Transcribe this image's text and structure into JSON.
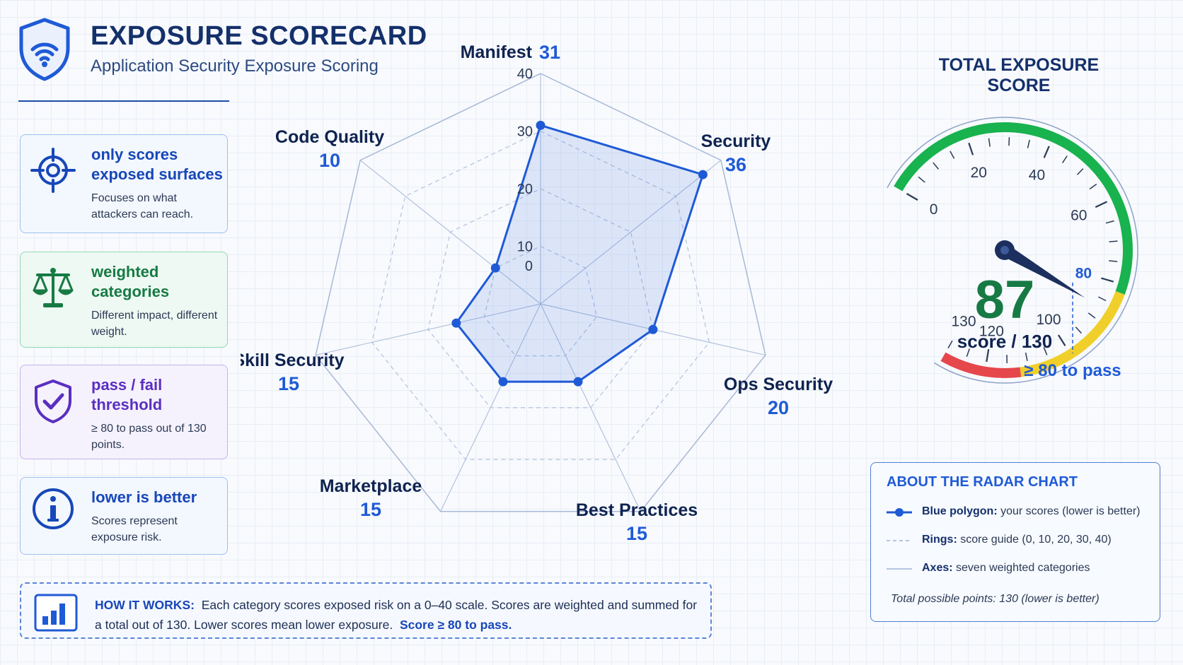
{
  "header": {
    "title": "EXPOSURE SCORECARD",
    "subtitle": "Application Security Exposure Scoring"
  },
  "cards": [
    {
      "title": "only scores exposed surfaces",
      "desc": "Focuses on what attackers can reach.",
      "icon": "crosshair-icon",
      "color": "#1747b8"
    },
    {
      "title": "weighted categories",
      "desc": "Different impact, different weight.",
      "icon": "scale-icon",
      "color": "#177a44"
    },
    {
      "title": "pass / fail threshold",
      "desc": "≥ 80 to pass out of 130 points.",
      "icon": "shield-check-icon",
      "color": "#5a2fc0"
    },
    {
      "title": "lower is better",
      "desc": "Scores represent exposure risk.",
      "icon": "info-icon",
      "color": "#1747b8"
    }
  ],
  "how_it_works": {
    "label": "HOW IT WORKS:",
    "text": "Each category scores exposed risk on a 0–40 scale. Scores are weighted and summed for a total out of 130. Lower scores mean lower exposure.",
    "pass": "Score ≥ 80 to pass."
  },
  "chart_data": [
    {
      "type": "radar",
      "categories": [
        "Manifest",
        "Security",
        "Ops Security",
        "Best Practices",
        "Marketplace",
        "Skill Security",
        "Code Quality"
      ],
      "values": [
        31,
        36,
        20,
        15,
        15,
        15,
        10
      ],
      "rings": [
        0,
        10,
        20,
        30,
        40
      ],
      "range": [
        0,
        40
      ],
      "color": "#1f5ad6"
    },
    {
      "type": "gauge",
      "title": "TOTAL EXPOSURE SCORE",
      "value": 87,
      "value_label": "87",
      "unit_label": "score / 130",
      "range": [
        0,
        130
      ],
      "ticks": [
        0,
        20,
        40,
        60,
        80,
        100,
        120,
        130
      ],
      "threshold": 80,
      "threshold_label": "≥ 80 to pass",
      "bands": [
        {
          "from": 0,
          "to": 82,
          "color": "#18b24e"
        },
        {
          "from": 82,
          "to": 112,
          "color": "#f0cf2a"
        },
        {
          "from": 112,
          "to": 130,
          "color": "#e5474b"
        }
      ]
    }
  ],
  "legend": {
    "title": "ABOUT THE RADAR CHART",
    "rows": [
      {
        "key": "Blue polygon:",
        "text": "your scores (lower is better)"
      },
      {
        "key": "Rings:",
        "text": "score guide (0, 10, 20, 30, 40)"
      },
      {
        "key": "Axes:",
        "text": "seven weighted categories"
      }
    ],
    "footer": "Total possible points: 130 (lower is better)"
  }
}
